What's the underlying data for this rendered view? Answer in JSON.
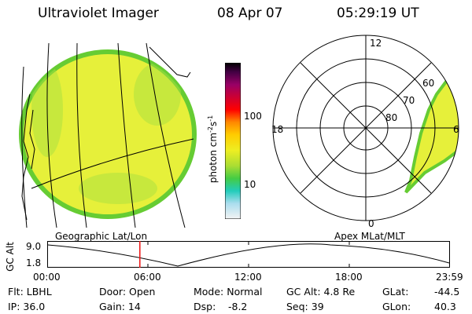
{
  "header": {
    "title": "Ultraviolet Imager",
    "date": "08 Apr 07",
    "time": "05:29:19 UT"
  },
  "geo_label": "Geographic Lat/Lon",
  "apex_label": "Apex MLat/MLT",
  "colorbar": {
    "label_base": "photon cm",
    "label_exp1": "-2",
    "label_mid": "s",
    "label_exp2": "-1",
    "ticks": [
      "100",
      "10"
    ]
  },
  "polar": {
    "mlt_labels": [
      "12",
      "18",
      "6",
      "0"
    ],
    "lat_labels": [
      "60",
      "70",
      "80"
    ]
  },
  "timeline": {
    "ylabel": "GC Alt",
    "ymax": "9.0",
    "ymin": "1.8",
    "xticks": [
      "00:00",
      "06:00",
      "12:00",
      "18:00",
      "23:59"
    ],
    "marker_fraction": 0.229
  },
  "info": {
    "flt": "Flt: LBHL",
    "ip": "IP: 36.0",
    "door": "Door: Open",
    "gain": "Gain: 14",
    "mode": "Mode: Normal",
    "dsp_label": "Dsp:",
    "dsp_value": "-8.2",
    "gcalt": "GC Alt: 4.8 Re",
    "seq": "Seq: 39",
    "glat_label": "GLat:",
    "glat_value": "-44.5",
    "glon_label": "GLon:",
    "glon_value": "40.3"
  },
  "colors": {
    "disk_fill": "#e6f03a",
    "disk_edge": "#66cc33",
    "bg": "#ffffff"
  }
}
